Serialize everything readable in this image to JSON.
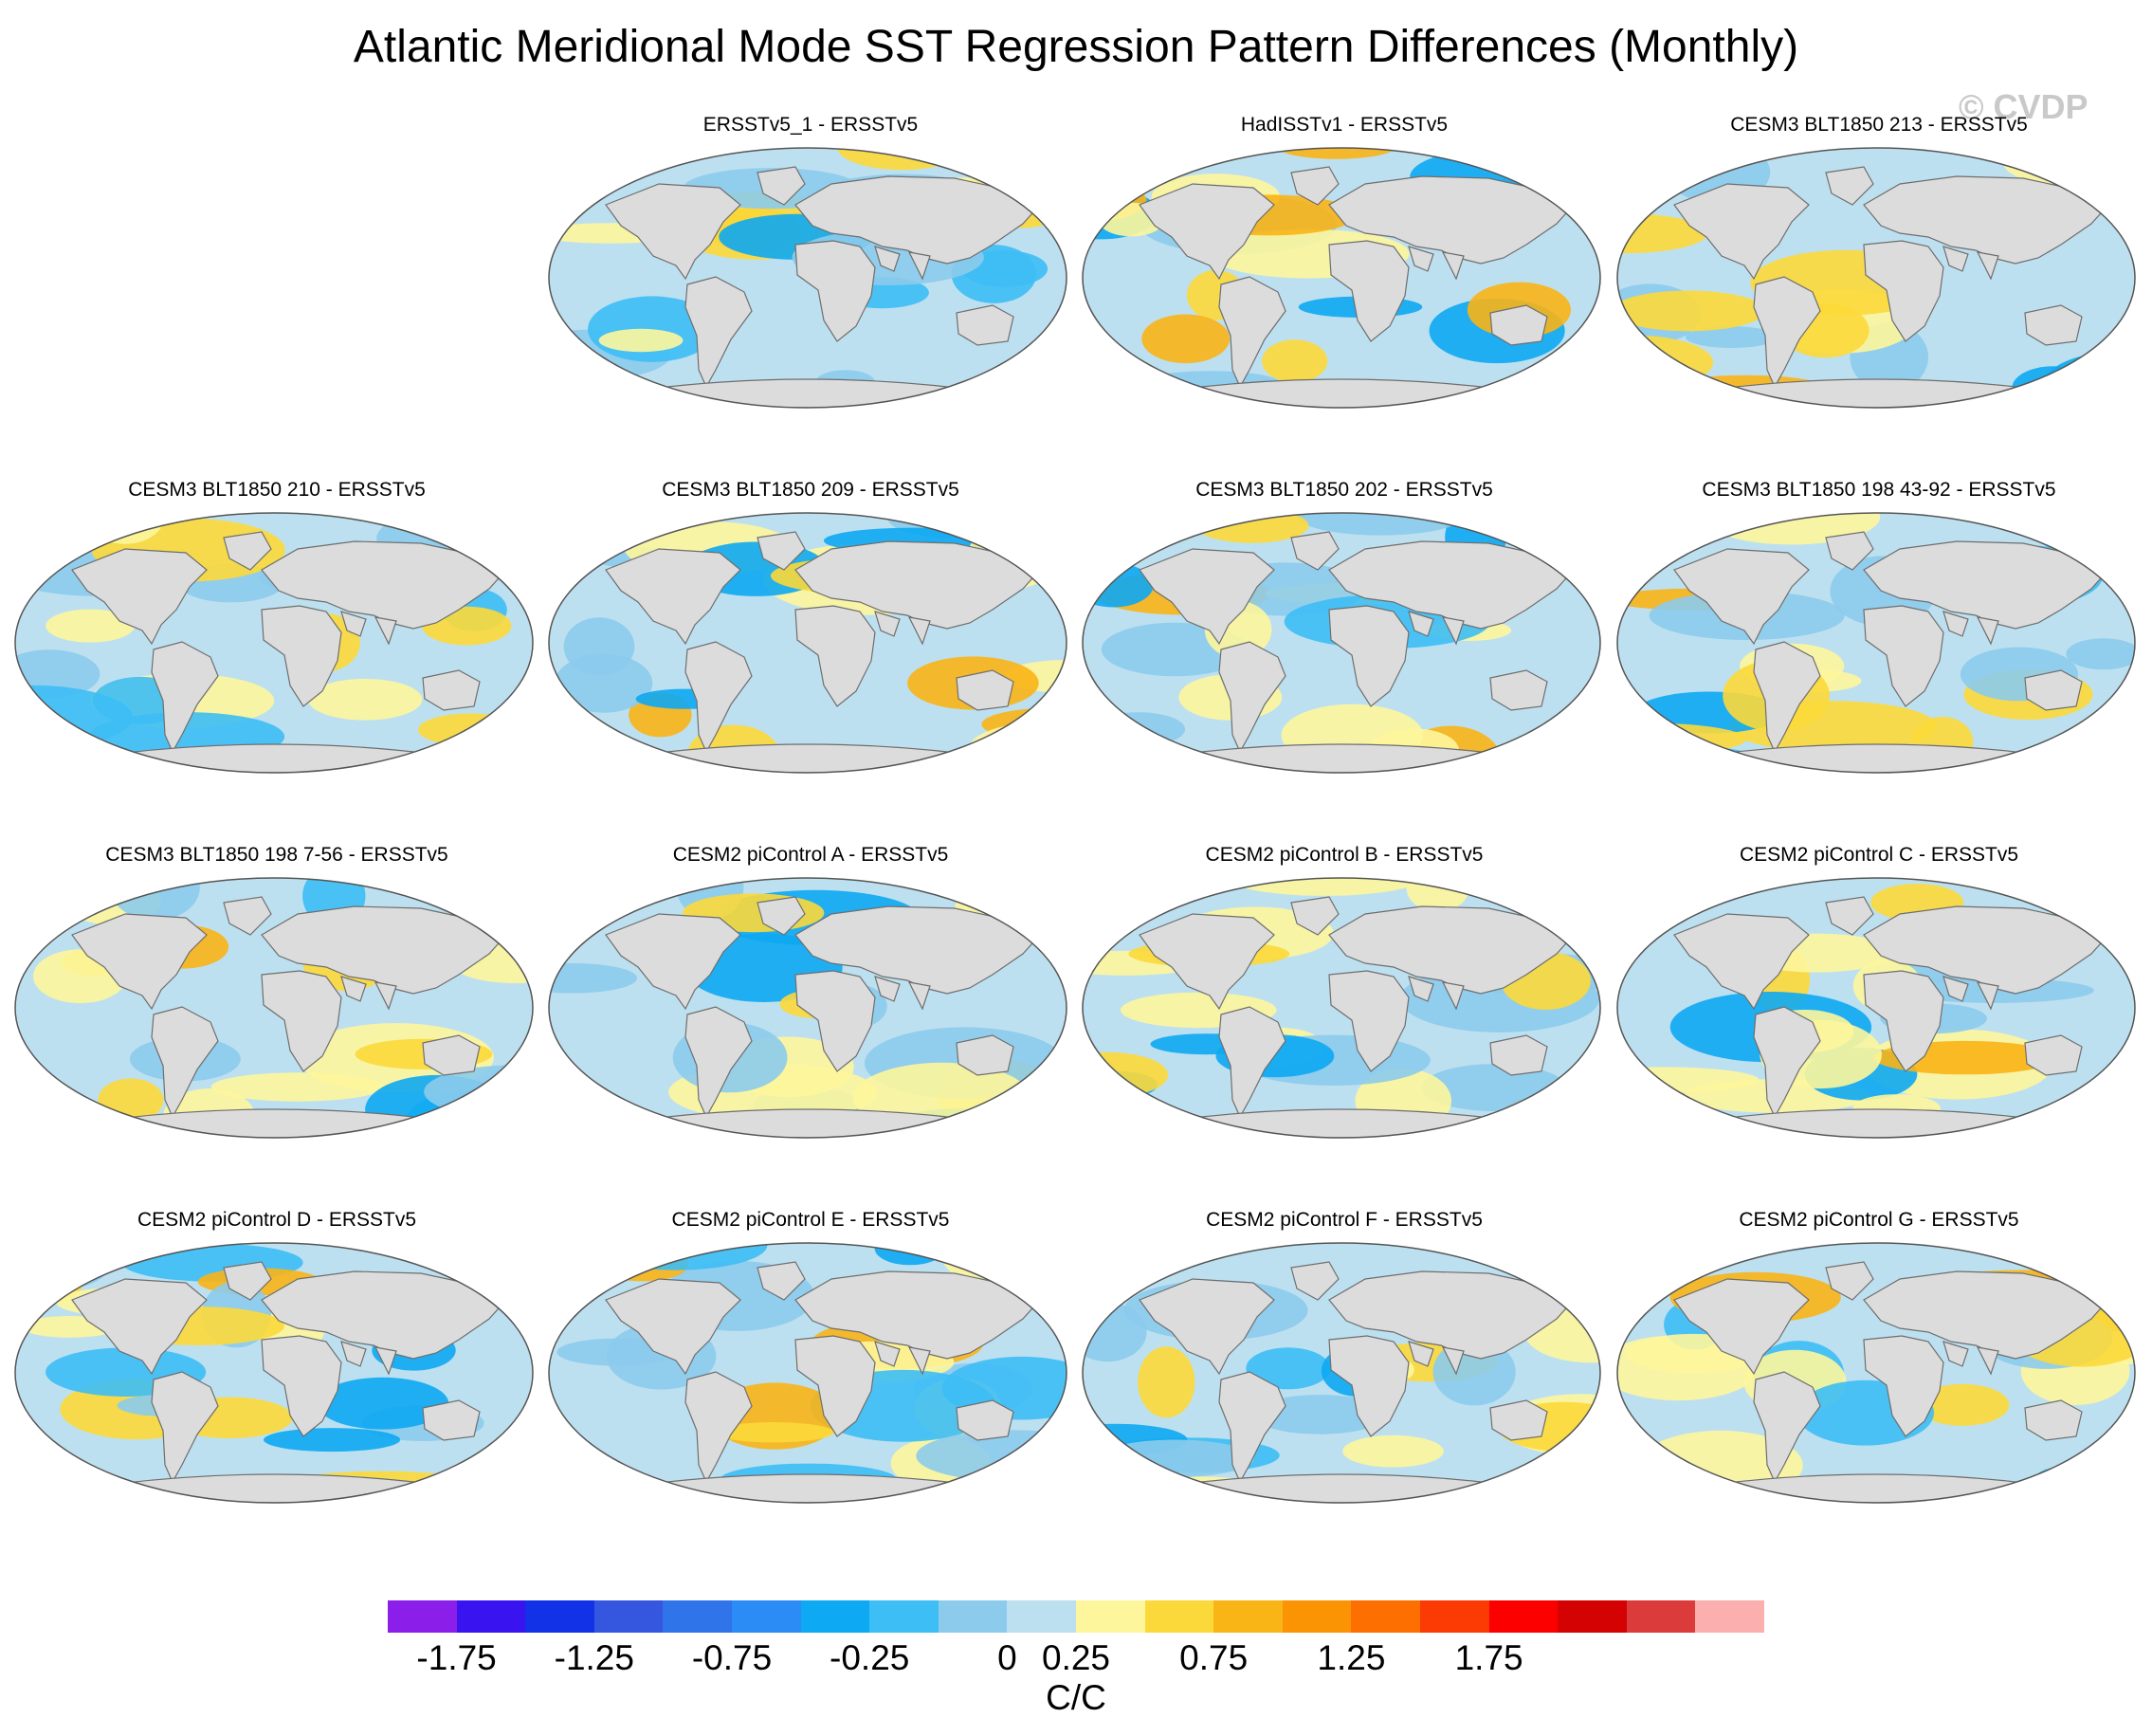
{
  "title": "Atlantic Meridional Mode SST Regression Pattern Differences (Monthly)",
  "watermark": "© CVDP",
  "chart_data": {
    "type": "heatmap",
    "map_projection": "Robinson (global)",
    "panels": [
      {
        "title": "ERSSTv5_1 - ERSSTv5"
      },
      {
        "title": "HadISSTv1 - ERSSTv5"
      },
      {
        "title": "CESM3 BLT1850 213 - ERSSTv5"
      },
      {
        "title": "CESM3 BLT1850 210 - ERSSTv5"
      },
      {
        "title": "CESM3 BLT1850 209 - ERSSTv5"
      },
      {
        "title": "CESM3 BLT1850 202 - ERSSTv5"
      },
      {
        "title": "CESM3 BLT1850 198 43-92 - ERSSTv5"
      },
      {
        "title": "CESM3 BLT1850 198 7-56 - ERSSTv5"
      },
      {
        "title": "CESM2 piControl A - ERSSTv5"
      },
      {
        "title": "CESM2 piControl B - ERSSTv5"
      },
      {
        "title": "CESM2 piControl C - ERSSTv5"
      },
      {
        "title": "CESM2 piControl D - ERSSTv5"
      },
      {
        "title": "CESM2 piControl E - ERSSTv5"
      },
      {
        "title": "CESM2 piControl F - ERSSTv5"
      },
      {
        "title": "CESM2 piControl G - ERSSTv5"
      }
    ],
    "colorbar": {
      "levels": [
        -2,
        -1.75,
        -1.5,
        -1.25,
        -1,
        -0.75,
        -0.5,
        -0.25,
        0,
        0.25,
        0.5,
        0.75,
        1,
        1.25,
        1.5,
        1.75,
        2
      ],
      "tick_labels": [
        "-1.75",
        "-1.25",
        "-0.75",
        "-0.25",
        "0",
        "0.25",
        "0.75",
        "1.25",
        "1.75"
      ],
      "tick_values": [
        -1.75,
        -1.25,
        -0.75,
        -0.25,
        0,
        0.25,
        0.75,
        1.25,
        1.75
      ],
      "colors": [
        "#8b1ee8",
        "#3a14f0",
        "#1232e8",
        "#3556de",
        "#2f74e8",
        "#2b8cf5",
        "#0da9f2",
        "#3dbef5",
        "#8ccbec",
        "#bde0f0",
        "#fdf69c",
        "#fcd93a",
        "#f9b416",
        "#fb9405",
        "#fc6f00",
        "#fb3a04",
        "#fc0000",
        "#d40202",
        "#dc3b3b",
        "#fcafaf"
      ],
      "units": "C/C"
    },
    "colors": {
      "land": "#dcdcdc",
      "coast": "#6e6e6e",
      "ocean_near_zero": "#bde0f0"
    }
  }
}
